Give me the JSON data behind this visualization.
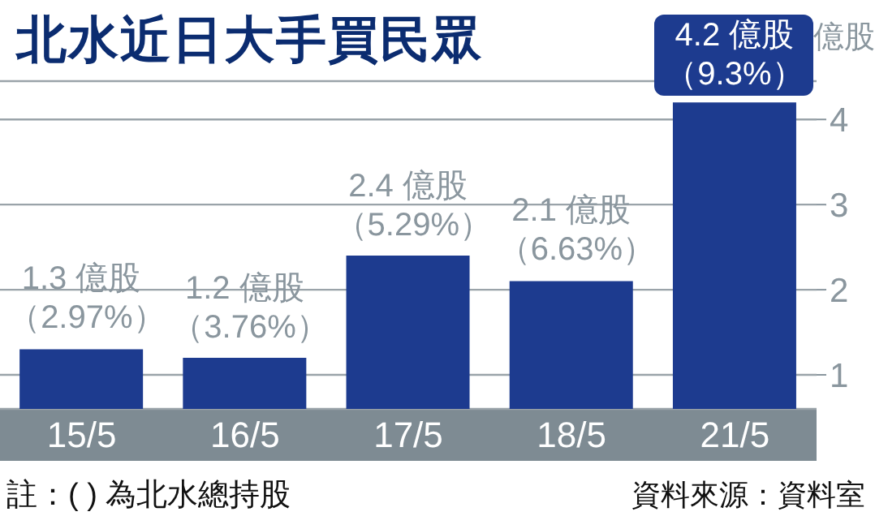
{
  "chart_data": {
    "type": "bar",
    "title": "北水近日大手買民眾",
    "ylabel": "億股",
    "categories": [
      "15/5",
      "16/5",
      "17/5",
      "18/5",
      "21/5"
    ],
    "values": [
      1.3,
      1.2,
      2.4,
      2.1,
      4.2
    ],
    "color": "#1d3b8f",
    "value_labels": [
      "1.3 億股（2.97%）",
      "1.2 億股（3.76%）",
      "2.4 億股（5.29%）",
      "2.1 億股（6.63%）",
      "4.2 億股（9.3%）"
    ],
    "ylim": [
      0.6,
      4.45
    ],
    "yticks": [
      1,
      2,
      3,
      4
    ],
    "grid": "y",
    "legend": false,
    "annotations": [
      "註：( ) 為北水總持股",
      "資料來源：資料室"
    ]
  }
}
